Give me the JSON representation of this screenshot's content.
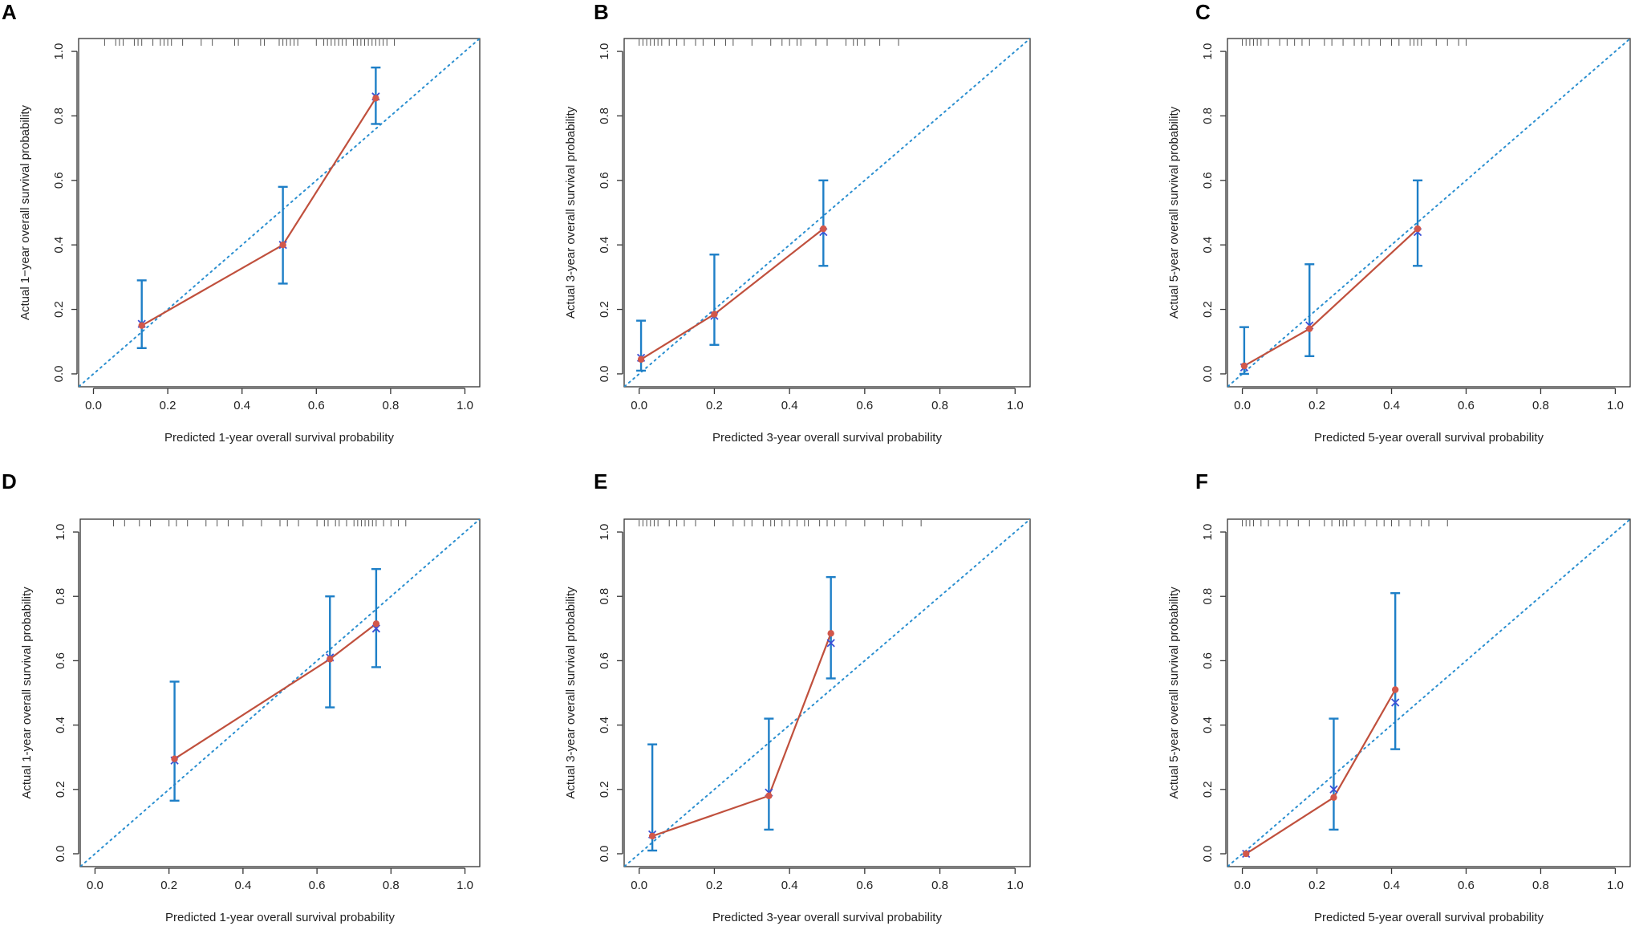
{
  "chart_data": [
    {
      "panel": "A",
      "type": "line",
      "xlabel": "Predicted 1-year overall survival probability",
      "ylabel": "Actual 1−year overall survival probability",
      "xlim": [
        0,
        1
      ],
      "ylim": [
        0,
        1
      ],
      "x_ticks": [
        "0.0",
        "0.2",
        "0.4",
        "0.6",
        "0.8",
        "1.0"
      ],
      "y_ticks": [
        "0.0",
        "0.2",
        "0.4",
        "0.6",
        "0.8",
        "1.0"
      ],
      "points": [
        {
          "x": 0.13,
          "y": 0.15,
          "lower": 0.08,
          "upper": 0.29,
          "x_mark": 0.155
        },
        {
          "x": 0.51,
          "y": 0.4,
          "lower": 0.28,
          "upper": 0.58,
          "x_mark": 0.4
        },
        {
          "x": 0.76,
          "y": 0.855,
          "lower": 0.775,
          "upper": 0.95,
          "x_mark": 0.86
        }
      ],
      "rug": [
        0.03,
        0.06,
        0.07,
        0.08,
        0.11,
        0.12,
        0.13,
        0.16,
        0.18,
        0.19,
        0.2,
        0.21,
        0.24,
        0.29,
        0.32,
        0.38,
        0.39,
        0.45,
        0.46,
        0.5,
        0.51,
        0.52,
        0.53,
        0.54,
        0.55,
        0.6,
        0.62,
        0.63,
        0.64,
        0.65,
        0.66,
        0.67,
        0.68,
        0.7,
        0.71,
        0.72,
        0.73,
        0.74,
        0.75,
        0.76,
        0.77,
        0.78,
        0.79,
        0.81
      ]
    },
    {
      "panel": "B",
      "type": "line",
      "xlabel": "Predicted 3-year overall survival probability",
      "ylabel": "Actual 3-year overall survival probability",
      "xlim": [
        0,
        1
      ],
      "ylim": [
        0,
        1
      ],
      "x_ticks": [
        "0.0",
        "0.2",
        "0.4",
        "0.6",
        "0.8",
        "1.0"
      ],
      "y_ticks": [
        "0.0",
        "0.2",
        "0.4",
        "0.6",
        "0.8",
        "1.0"
      ],
      "points": [
        {
          "x": 0.005,
          "y": 0.045,
          "lower": 0.01,
          "upper": 0.165,
          "x_mark": 0.05
        },
        {
          "x": 0.2,
          "y": 0.185,
          "lower": 0.09,
          "upper": 0.37,
          "x_mark": 0.18
        },
        {
          "x": 0.49,
          "y": 0.45,
          "lower": 0.335,
          "upper": 0.6,
          "x_mark": 0.44
        }
      ],
      "rug": [
        0.0,
        0.01,
        0.02,
        0.03,
        0.04,
        0.05,
        0.06,
        0.08,
        0.1,
        0.12,
        0.15,
        0.17,
        0.2,
        0.23,
        0.25,
        0.3,
        0.35,
        0.38,
        0.4,
        0.42,
        0.43,
        0.47,
        0.5,
        0.55,
        0.57,
        0.58,
        0.6,
        0.64,
        0.69
      ]
    },
    {
      "panel": "C",
      "type": "line",
      "xlabel": "Predicted 5-year overall survival probability",
      "ylabel": "Actual 5-year overall survival probability",
      "xlim": [
        0,
        1
      ],
      "ylim": [
        0,
        1
      ],
      "x_ticks": [
        "0.0",
        "0.2",
        "0.4",
        "0.6",
        "0.8",
        "1.0"
      ],
      "y_ticks": [
        "0.0",
        "0.2",
        "0.4",
        "0.6",
        "0.8",
        "1.0"
      ],
      "points": [
        {
          "x": 0.005,
          "y": 0.025,
          "lower": 0.0,
          "upper": 0.145,
          "x_mark": 0.02
        },
        {
          "x": 0.18,
          "y": 0.14,
          "lower": 0.055,
          "upper": 0.34,
          "x_mark": 0.15
        },
        {
          "x": 0.47,
          "y": 0.45,
          "lower": 0.335,
          "upper": 0.6,
          "x_mark": 0.44
        }
      ],
      "rug": [
        0.0,
        0.01,
        0.02,
        0.03,
        0.04,
        0.05,
        0.07,
        0.1,
        0.12,
        0.14,
        0.16,
        0.18,
        0.22,
        0.24,
        0.27,
        0.3,
        0.32,
        0.34,
        0.37,
        0.4,
        0.42,
        0.45,
        0.46,
        0.47,
        0.48,
        0.52,
        0.55,
        0.58,
        0.6
      ]
    },
    {
      "panel": "D",
      "type": "line",
      "xlabel": "Predicted 1-year overall survival probability",
      "ylabel": "Actual 1-year overall survival probability",
      "xlim": [
        0,
        1
      ],
      "ylim": [
        0,
        1
      ],
      "x_ticks": [
        "0.0",
        "0.2",
        "0.4",
        "0.6",
        "0.8",
        "1.0"
      ],
      "y_ticks": [
        "0.0",
        "0.2",
        "0.4",
        "0.6",
        "0.8",
        "1.0"
      ],
      "points": [
        {
          "x": 0.215,
          "y": 0.295,
          "lower": 0.165,
          "upper": 0.535,
          "x_mark": 0.29
        },
        {
          "x": 0.635,
          "y": 0.605,
          "lower": 0.455,
          "upper": 0.8,
          "x_mark": 0.61
        },
        {
          "x": 0.76,
          "y": 0.715,
          "lower": 0.58,
          "upper": 0.885,
          "x_mark": 0.7
        }
      ],
      "rug": [
        0.05,
        0.08,
        0.12,
        0.15,
        0.2,
        0.22,
        0.25,
        0.3,
        0.33,
        0.36,
        0.4,
        0.45,
        0.5,
        0.52,
        0.55,
        0.6,
        0.62,
        0.63,
        0.65,
        0.66,
        0.68,
        0.7,
        0.71,
        0.72,
        0.73,
        0.74,
        0.75,
        0.76,
        0.78,
        0.8,
        0.82,
        0.84
      ]
    },
    {
      "panel": "E",
      "type": "line",
      "xlabel": "Predicted 3-year overall survival probability",
      "ylabel": "Actual 3-year overall survival probability",
      "xlim": [
        0,
        1
      ],
      "ylim": [
        0,
        1
      ],
      "x_ticks": [
        "0.0",
        "0.2",
        "0.4",
        "0.6",
        "0.8",
        "1.0"
      ],
      "y_ticks": [
        "0.0",
        "0.2",
        "0.4",
        "0.6",
        "0.8",
        "1.0"
      ],
      "points": [
        {
          "x": 0.035,
          "y": 0.055,
          "lower": 0.01,
          "upper": 0.34,
          "x_mark": 0.06
        },
        {
          "x": 0.345,
          "y": 0.18,
          "lower": 0.075,
          "upper": 0.42,
          "x_mark": 0.19
        },
        {
          "x": 0.51,
          "y": 0.685,
          "lower": 0.545,
          "upper": 0.86,
          "x_mark": 0.655
        }
      ],
      "rug": [
        0.0,
        0.01,
        0.02,
        0.03,
        0.04,
        0.05,
        0.08,
        0.1,
        0.12,
        0.15,
        0.2,
        0.25,
        0.28,
        0.3,
        0.33,
        0.35,
        0.36,
        0.38,
        0.4,
        0.42,
        0.44,
        0.45,
        0.48,
        0.5,
        0.52,
        0.55,
        0.6,
        0.65,
        0.7,
        0.75
      ]
    },
    {
      "panel": "F",
      "type": "line",
      "xlabel": "Predicted 5-year overall survival probability",
      "ylabel": "Actual 5-year overall survival probability",
      "xlim": [
        0,
        1
      ],
      "ylim": [
        0,
        1
      ],
      "x_ticks": [
        "0.0",
        "0.2",
        "0.4",
        "0.6",
        "0.8",
        "1.0"
      ],
      "y_ticks": [
        "0.0",
        "0.2",
        "0.4",
        "0.6",
        "0.8",
        "1.0"
      ],
      "points": [
        {
          "x": 0.01,
          "y": 0.0,
          "lower": 0.0,
          "upper": 0.0,
          "x_mark": 0.0
        },
        {
          "x": 0.245,
          "y": 0.175,
          "lower": 0.075,
          "upper": 0.42,
          "x_mark": 0.2
        },
        {
          "x": 0.41,
          "y": 0.51,
          "lower": 0.325,
          "upper": 0.81,
          "x_mark": 0.47
        }
      ],
      "rug": [
        0.0,
        0.01,
        0.02,
        0.03,
        0.05,
        0.07,
        0.1,
        0.12,
        0.15,
        0.18,
        0.22,
        0.24,
        0.26,
        0.27,
        0.28,
        0.3,
        0.33,
        0.36,
        0.38,
        0.4,
        0.42,
        0.45,
        0.48,
        0.5,
        0.55
      ]
    }
  ]
}
